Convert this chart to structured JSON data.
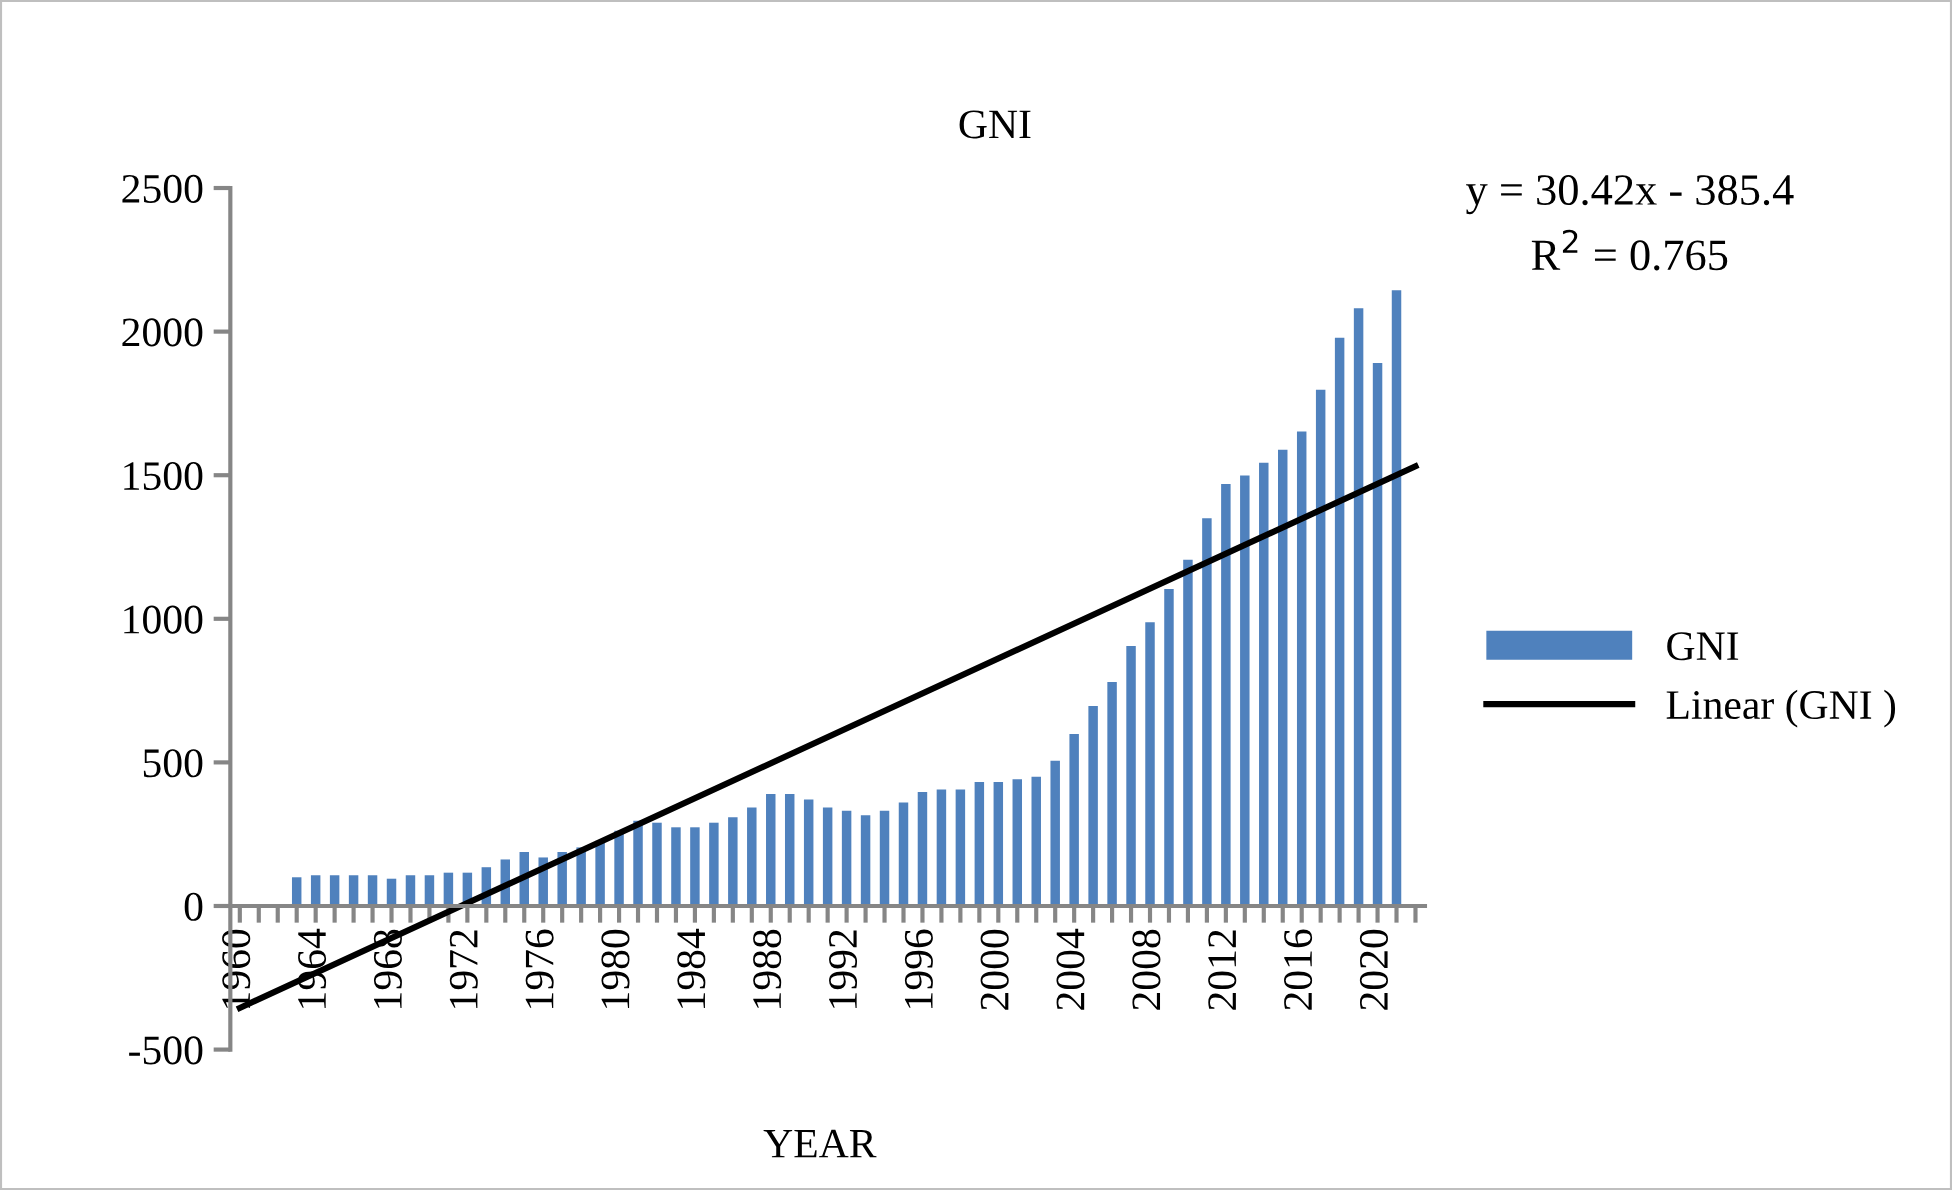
{
  "chart_data": {
    "type": "bar",
    "title": "GNI",
    "xlabel": "YEAR",
    "x": [
      1963,
      1964,
      1965,
      1966,
      1967,
      1968,
      1969,
      1970,
      1971,
      1972,
      1973,
      1974,
      1975,
      1976,
      1977,
      1978,
      1979,
      1980,
      1981,
      1982,
      1983,
      1984,
      1985,
      1986,
      1987,
      1988,
      1989,
      1990,
      1991,
      1992,
      1993,
      1994,
      1995,
      1996,
      1997,
      1998,
      1999,
      2000,
      2001,
      2002,
      2003,
      2004,
      2005,
      2006,
      2007,
      2008,
      2009,
      2010,
      2011,
      2012,
      2013,
      2014,
      2015,
      2016,
      2017,
      2018,
      2019,
      2020,
      2021
    ],
    "series": [
      {
        "name": "GNI",
        "color": "#4f81bd",
        "values": [
          100,
          107,
          107,
          107,
          107,
          95,
          107,
          107,
          116,
          116,
          135,
          162,
          188,
          169,
          188,
          204,
          227,
          262,
          297,
          290,
          274,
          274,
          290,
          309,
          343,
          390,
          390,
          371,
          343,
          332,
          316,
          332,
          360,
          397,
          406,
          406,
          432,
          432,
          441,
          450,
          506,
          599,
          696,
          780,
          905,
          988,
          1104,
          1206,
          1350,
          1469,
          1499,
          1543,
          1589,
          1652,
          1798,
          1979,
          2081,
          1891,
          2144
        ]
      },
      {
        "name": "Linear (GNI )",
        "type": "line",
        "color": "#000000",
        "x": [
          1960,
          2022
        ],
        "values": [
          -355,
          1531
        ]
      }
    ],
    "xlim": [
      1959.5,
      2022.5
    ],
    "xticks": [
      1960,
      {
        "value": 1961,
        "label": null
      },
      {
        "value": 1962,
        "label": null
      },
      {
        "value": 1963,
        "label": null
      },
      1964,
      {
        "value": 1965,
        "label": null
      },
      {
        "value": 1966,
        "label": null
      },
      {
        "value": 1967,
        "label": null
      },
      1968,
      {
        "value": 1969,
        "label": null
      },
      {
        "value": 1970,
        "label": null
      },
      {
        "value": 1971,
        "label": null
      },
      1972,
      {
        "value": 1973,
        "label": null
      },
      {
        "value": 1974,
        "label": null
      },
      {
        "value": 1975,
        "label": null
      },
      1976,
      {
        "value": 1977,
        "label": null
      },
      {
        "value": 1978,
        "label": null
      },
      {
        "value": 1979,
        "label": null
      },
      1980,
      {
        "value": 1981,
        "label": null
      },
      {
        "value": 1982,
        "label": null
      },
      {
        "value": 1983,
        "label": null
      },
      1984,
      {
        "value": 1985,
        "label": null
      },
      {
        "value": 1986,
        "label": null
      },
      {
        "value": 1987,
        "label": null
      },
      1988,
      {
        "value": 1989,
        "label": null
      },
      {
        "value": 1990,
        "label": null
      },
      {
        "value": 1991,
        "label": null
      },
      1992,
      {
        "value": 1993,
        "label": null
      },
      {
        "value": 1994,
        "label": null
      },
      {
        "value": 1995,
        "label": null
      },
      1996,
      {
        "value": 1997,
        "label": null
      },
      {
        "value": 1998,
        "label": null
      },
      {
        "value": 1999,
        "label": null
      },
      2000,
      {
        "value": 2001,
        "label": null
      },
      {
        "value": 2002,
        "label": null
      },
      {
        "value": 2003,
        "label": null
      },
      2004,
      {
        "value": 2005,
        "label": null
      },
      {
        "value": 2006,
        "label": null
      },
      {
        "value": 2007,
        "label": null
      },
      2008,
      {
        "value": 2009,
        "label": null
      },
      {
        "value": 2010,
        "label": null
      },
      {
        "value": 2011,
        "label": null
      },
      2012,
      {
        "value": 2013,
        "label": null
      },
      {
        "value": 2014,
        "label": null
      },
      {
        "value": 2015,
        "label": null
      },
      2016,
      {
        "value": 2017,
        "label": null
      },
      {
        "value": 2018,
        "label": null
      },
      {
        "value": 2019,
        "label": null
      },
      2020,
      {
        "value": 2021,
        "label": null
      },
      {
        "value": 2022,
        "label": null
      }
    ],
    "ylim": [
      -500,
      2500
    ],
    "yticks": [
      -500,
      0,
      500,
      1000,
      1500,
      2000,
      2500
    ],
    "annotations": [
      "y = 30.42x - 385.4",
      "R$^{2}$ = 0.765"
    ],
    "legend": "right",
    "grid": false
  }
}
